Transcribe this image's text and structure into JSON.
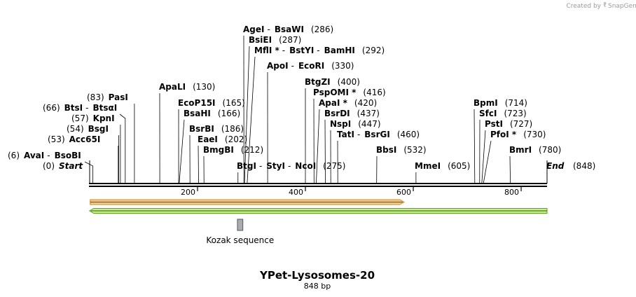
{
  "credit": {
    "text": "Created by",
    "brand": "SnapGene"
  },
  "map": {
    "title": "YPet-Lysosomes-20",
    "length_label": "848 bp",
    "length": 848,
    "start_label": "Start",
    "start_pos": "(0)",
    "end_label": "End",
    "end_pos": "(848)",
    "ticks": [
      200,
      400,
      600,
      800
    ],
    "backbone_color": "#000000"
  },
  "sites": [
    {
      "parts": [
        "AvaI",
        "BsoBI"
      ],
      "pos_label": "(6)",
      "position": 6
    },
    {
      "parts": [
        "Acc65I"
      ],
      "pos_label": "(53)",
      "position": 53
    },
    {
      "parts": [
        "BsgI"
      ],
      "pos_label": "(54)",
      "position": 54
    },
    {
      "parts": [
        "KpnI"
      ],
      "pos_label": "(57)",
      "position": 57
    },
    {
      "parts": [
        "BtsI",
        "BtsαI"
      ],
      "pos_label": "(66)",
      "position": 66
    },
    {
      "parts": [
        "PasI"
      ],
      "pos_label": "(83)",
      "position": 83
    },
    {
      "parts": [
        "ApaLI"
      ],
      "pos_label": "(130)",
      "position": 130
    },
    {
      "parts": [
        "EcoP15I"
      ],
      "pos_label": "(165)",
      "position": 165
    },
    {
      "parts": [
        "BsaHI"
      ],
      "pos_label": "(166)",
      "position": 166
    },
    {
      "parts": [
        "BsrBI"
      ],
      "pos_label": "(186)",
      "position": 186
    },
    {
      "parts": [
        "EaeI"
      ],
      "pos_label": "(202)",
      "position": 202
    },
    {
      "parts": [
        "BmgBI"
      ],
      "pos_label": "(212)",
      "position": 212
    },
    {
      "parts": [
        "BtgI",
        "StyI",
        "NcoI"
      ],
      "pos_label": "(275)",
      "position": 275
    },
    {
      "parts": [
        "AgeI",
        "BsaWI"
      ],
      "pos_label": "(286)",
      "position": 286
    },
    {
      "parts": [
        "BsiEI"
      ],
      "pos_label": "(287)",
      "position": 287
    },
    {
      "parts": [
        "MflI *",
        "BstYI",
        "BamHI"
      ],
      "pos_label": "(292)",
      "position": 292
    },
    {
      "parts": [
        "ApoI",
        "EcoRI"
      ],
      "pos_label": "(330)",
      "position": 330
    },
    {
      "parts": [
        "BtgZI"
      ],
      "pos_label": "(400)",
      "position": 400
    },
    {
      "parts": [
        "PspOMI *"
      ],
      "pos_label": "(416)",
      "position": 416
    },
    {
      "parts": [
        "ApaI *"
      ],
      "pos_label": "(420)",
      "position": 420
    },
    {
      "parts": [
        "BsrDI"
      ],
      "pos_label": "(437)",
      "position": 437
    },
    {
      "parts": [
        "NspI"
      ],
      "pos_label": "(447)",
      "position": 447
    },
    {
      "parts": [
        "TatI",
        "BsrGI"
      ],
      "pos_label": "(460)",
      "position": 460
    },
    {
      "parts": [
        "BbsI"
      ],
      "pos_label": "(532)",
      "position": 532
    },
    {
      "parts": [
        "MmeI"
      ],
      "pos_label": "(605)",
      "position": 605
    },
    {
      "parts": [
        "BpmI"
      ],
      "pos_label": "(714)",
      "position": 714
    },
    {
      "parts": [
        "SfcI"
      ],
      "pos_label": "(723)",
      "position": 723
    },
    {
      "parts": [
        "PstI"
      ],
      "pos_label": "(727)",
      "position": 727
    },
    {
      "parts": [
        "PfoI *"
      ],
      "pos_label": "(730)",
      "position": 730
    },
    {
      "parts": [
        "BmrI"
      ],
      "pos_label": "(780)",
      "position": 780
    }
  ],
  "features": [
    {
      "name": "orange-feature-arrow",
      "start": 1,
      "end": 583,
      "direction": "forward",
      "fill": "#f5c98a",
      "stroke": "#d08a1e"
    },
    {
      "name": "green-feature-arrow",
      "start": 1,
      "end": 848,
      "direction": "reverse",
      "fill": "#c9f08a",
      "stroke": "#5aa51a"
    },
    {
      "name": "kozak-feature",
      "label": "Kozak sequence",
      "start": 274,
      "end": 284,
      "fill": "#a8adb3",
      "stroke": "#555555"
    }
  ]
}
